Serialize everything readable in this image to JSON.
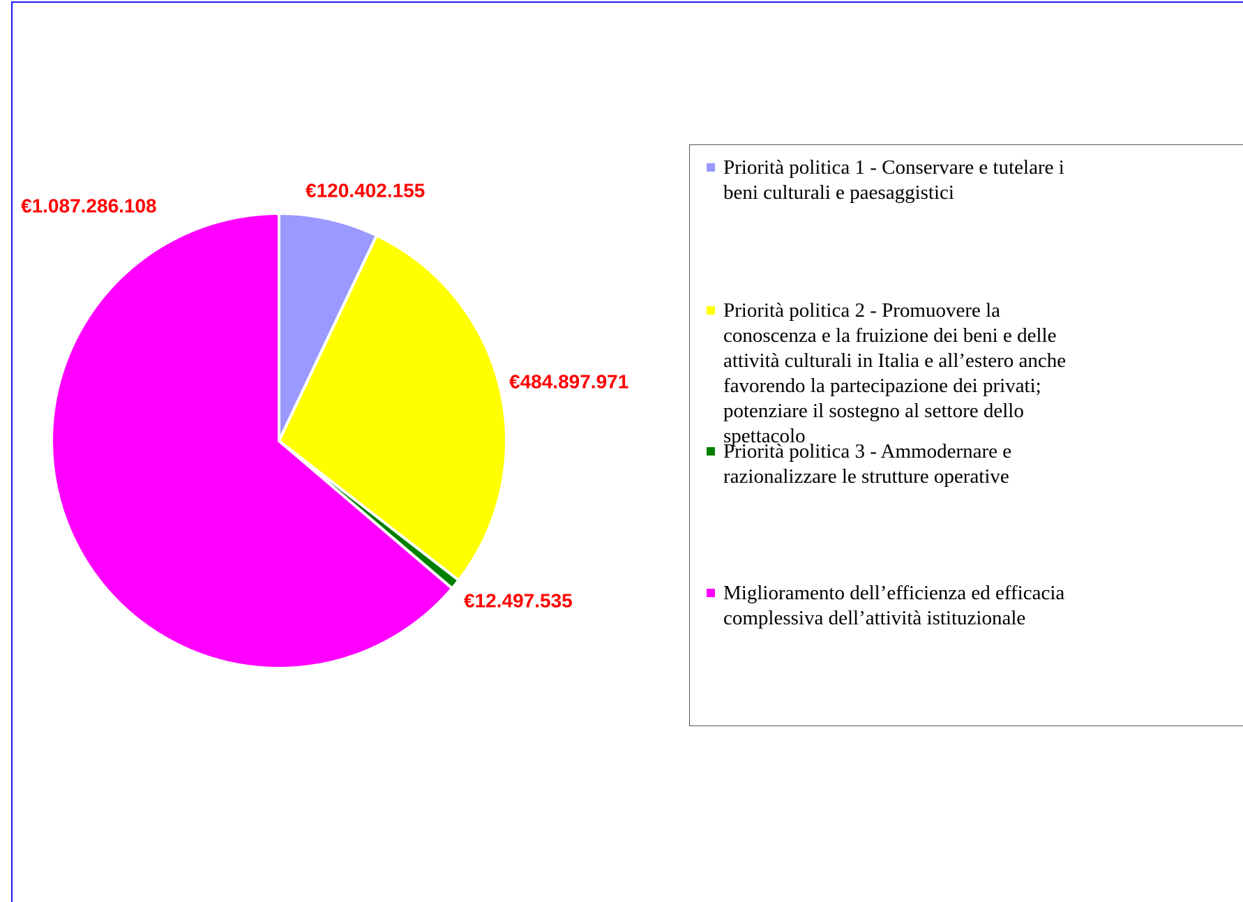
{
  "chart_data": {
    "type": "pie",
    "categories": [
      "Priorità politica 1 - Conservare e tutelare i beni culturali e paesaggistici",
      "Priorità politica 2 - Promuovere la conoscenza e la fruizione dei beni e delle attività culturali in Italia e all’estero anche favorendo la partecipazione dei privati; potenziare il sostegno al settore dello spettacolo",
      "Priorità politica 3 - Ammodernare e razionalizzare le strutture operative",
      "Miglioramento dell’efficienza ed efficacia complessiva dell’attività istituzionale"
    ],
    "values": [
      120402155,
      484897971,
      12497535,
      1087286108
    ],
    "value_labels": [
      "€120.402.155",
      "€484.897.971",
      "€12.497.535",
      "€1.087.286.108"
    ],
    "colors": [
      "#9999ff",
      "#ffff00",
      "#008000",
      "#ff00ff"
    ],
    "legend": "right"
  }
}
